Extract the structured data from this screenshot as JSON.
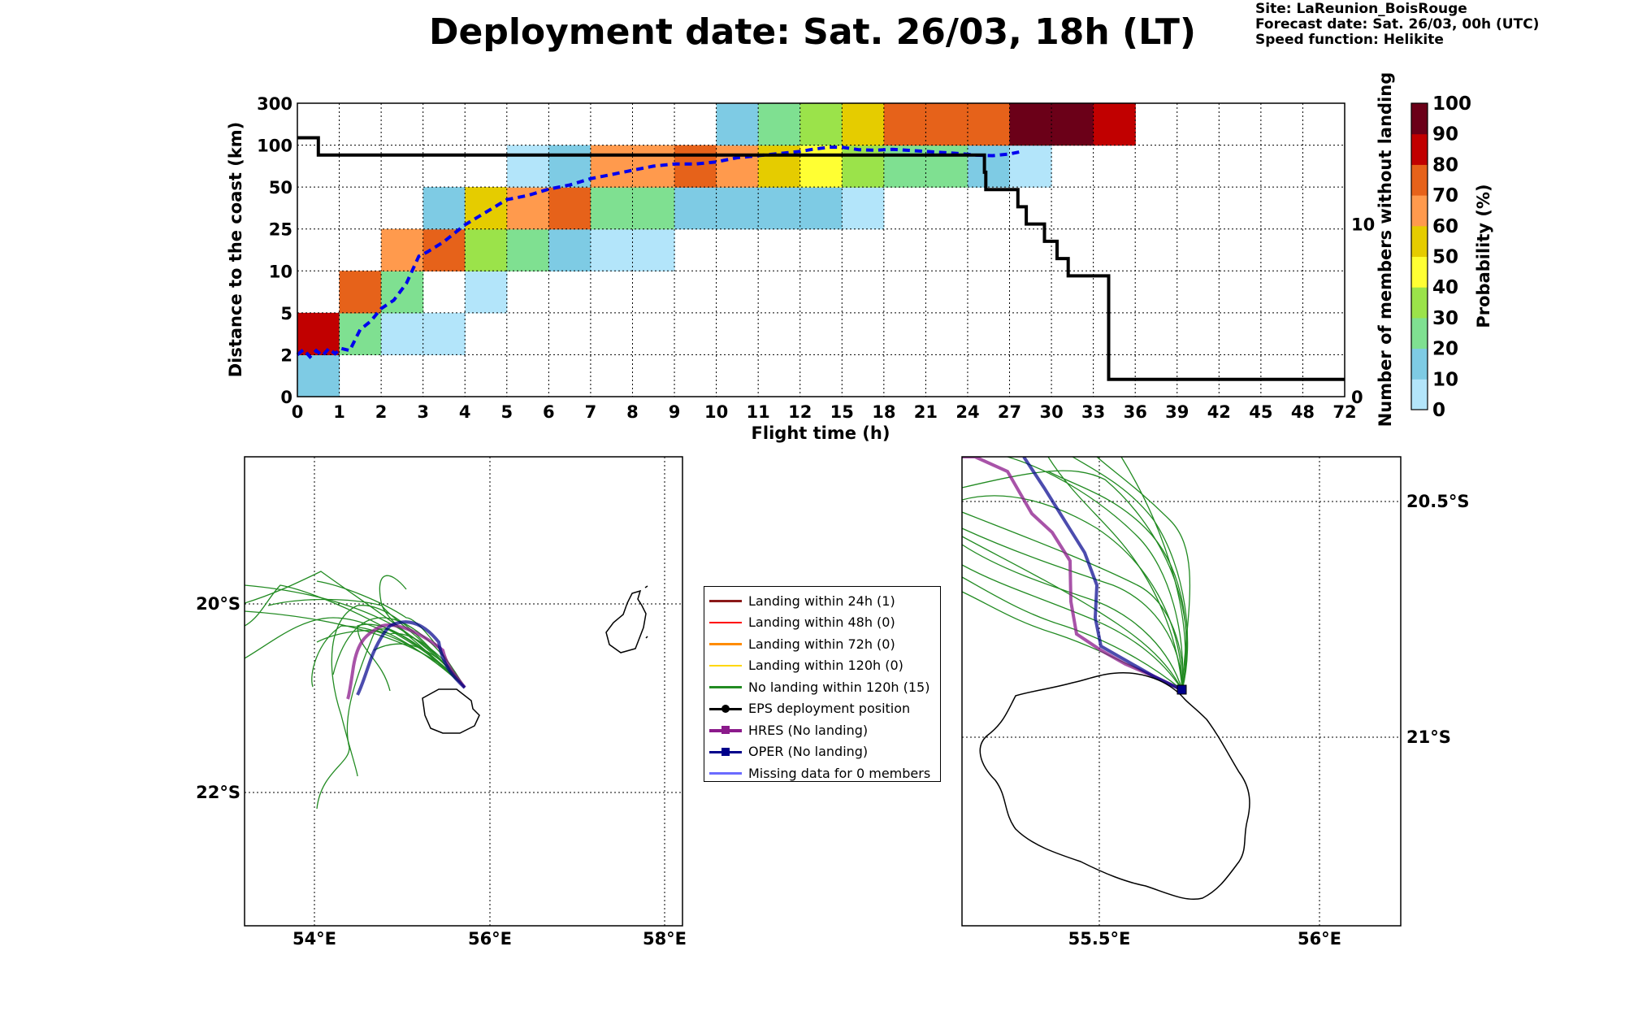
{
  "header": {
    "title": "Deployment date: Sat. 26/03, 18h (LT)",
    "site": "Site: LaReunion_BoisRouge",
    "forecast": "Forecast date: Sat. 26/03, 00h (UTC)",
    "speed": "Speed function: Helikite"
  },
  "chart_data": [
    {
      "type": "heatmap",
      "xlabel": "Flight time (h)",
      "ylabel": "Distance to the coast (km)",
      "ylabel_right": "Number of members without landing",
      "x_ticks": [
        "0",
        "1",
        "2",
        "3",
        "4",
        "5",
        "6",
        "7",
        "8",
        "9",
        "10",
        "11",
        "12",
        "15",
        "18",
        "21",
        "24",
        "27",
        "30",
        "33",
        "36",
        "39",
        "42",
        "45",
        "48",
        "72"
      ],
      "y_ticks": [
        "0",
        "2",
        "5",
        "10",
        "25",
        "50",
        "100",
        "300"
      ],
      "right_ticks": [
        {
          "label": "0",
          "value": 0
        },
        {
          "label": "10",
          "value": 10
        }
      ],
      "right_max": 17,
      "grid": true,
      "colorbar": {
        "label": "Probability (%)",
        "ticks": [
          "0",
          "10",
          "20",
          "30",
          "40",
          "50",
          "60",
          "70",
          "80",
          "90",
          "100"
        ],
        "colors": [
          "#b3e5fa",
          "#7ecbe4",
          "#7fe091",
          "#9be34a",
          "#ffff33",
          "#e5cc00",
          "#ff9a4d",
          "#e6621a",
          "#c10000",
          "#6b0018"
        ]
      },
      "cells": [
        {
          "x": 0,
          "y": 0,
          "p": 10
        },
        {
          "x": 0,
          "y": 1,
          "p": 80
        },
        {
          "x": 1,
          "y": 1,
          "p": 20
        },
        {
          "x": 1,
          "y": 2,
          "p": 70
        },
        {
          "x": 2,
          "y": 1,
          "p": 0
        },
        {
          "x": 2,
          "y": 2,
          "p": 20
        },
        {
          "x": 2,
          "y": 3,
          "p": 60
        },
        {
          "x": 3,
          "y": 1,
          "p": 0
        },
        {
          "x": 3,
          "y": 3,
          "p": 70
        },
        {
          "x": 3,
          "y": 4,
          "p": 10
        },
        {
          "x": 4,
          "y": 2,
          "p": 0
        },
        {
          "x": 4,
          "y": 3,
          "p": 30
        },
        {
          "x": 4,
          "y": 4,
          "p": 50
        },
        {
          "x": 5,
          "y": 3,
          "p": 20
        },
        {
          "x": 5,
          "y": 4,
          "p": 60
        },
        {
          "x": 5,
          "y": 5,
          "p": 0
        },
        {
          "x": 6,
          "y": 3,
          "p": 10
        },
        {
          "x": 6,
          "y": 4,
          "p": 70
        },
        {
          "x": 6,
          "y": 5,
          "p": 10
        },
        {
          "x": 7,
          "y": 3,
          "p": 0
        },
        {
          "x": 7,
          "y": 4,
          "p": 20
        },
        {
          "x": 7,
          "y": 5,
          "p": 60
        },
        {
          "x": 8,
          "y": 3,
          "p": 0
        },
        {
          "x": 8,
          "y": 4,
          "p": 20
        },
        {
          "x": 8,
          "y": 5,
          "p": 60
        },
        {
          "x": 9,
          "y": 4,
          "p": 10
        },
        {
          "x": 9,
          "y": 5,
          "p": 70
        },
        {
          "x": 10,
          "y": 4,
          "p": 10
        },
        {
          "x": 10,
          "y": 5,
          "p": 60
        },
        {
          "x": 10,
          "y": 6,
          "p": 10
        },
        {
          "x": 11,
          "y": 4,
          "p": 10
        },
        {
          "x": 11,
          "y": 5,
          "p": 50
        },
        {
          "x": 11,
          "y": 6,
          "p": 20
        },
        {
          "x": 12,
          "y": 4,
          "p": 10
        },
        {
          "x": 12,
          "y": 5,
          "p": 40
        },
        {
          "x": 12,
          "y": 6,
          "p": 30
        },
        {
          "x": 13,
          "y": 4,
          "p": 0
        },
        {
          "x": 13,
          "y": 5,
          "p": 30
        },
        {
          "x": 13,
          "y": 6,
          "p": 50
        },
        {
          "x": 14,
          "y": 5,
          "p": 20
        },
        {
          "x": 14,
          "y": 6,
          "p": 70
        },
        {
          "x": 15,
          "y": 5,
          "p": 20
        },
        {
          "x": 15,
          "y": 6,
          "p": 70
        },
        {
          "x": 16,
          "y": 5,
          "p": 10
        },
        {
          "x": 16,
          "y": 6,
          "p": 70
        },
        {
          "x": 17,
          "y": 5,
          "p": 0
        },
        {
          "x": 17,
          "y": 6,
          "p": 90
        },
        {
          "x": 18,
          "y": 6,
          "p": 90
        },
        {
          "x": 19,
          "y": 6,
          "p": 80
        }
      ],
      "median_distance": {
        "x": [
          0,
          0.15,
          0.3,
          0.45,
          0.6,
          0.75,
          0.9,
          1.05,
          1.25,
          1.5,
          1.75,
          2.0,
          2.3,
          2.6,
          2.9,
          3.1,
          3.5,
          4.0,
          4.5,
          5.0,
          5.5,
          6.0,
          6.5,
          7.0,
          7.5,
          8.0,
          8.5,
          9.0,
          9.5,
          10.0,
          10.5,
          11.0,
          11.5,
          12.0,
          12.3,
          12.7,
          13.0,
          13.4,
          13.8,
          14.2,
          14.6,
          15.0,
          15.4,
          15.8,
          16.2,
          16.6,
          17.0,
          17.3
        ],
        "y": [
          2,
          2.25,
          1.9,
          2.2,
          1.95,
          2.3,
          2.05,
          2.3,
          2.2,
          3.2,
          3.6,
          4.2,
          4.6,
          5.4,
          6.7,
          6.9,
          7.4,
          8.2,
          8.8,
          9.4,
          9.6,
          9.9,
          10.1,
          10.4,
          10.6,
          10.8,
          11.0,
          11.1,
          11.1,
          11.2,
          11.4,
          11.5,
          11.6,
          11.7,
          11.8,
          11.9,
          11.9,
          11.78,
          11.76,
          11.8,
          11.75,
          11.7,
          11.65,
          11.6,
          11.52,
          11.5,
          11.58,
          11.7
        ]
      },
      "members_without_landing": {
        "x": [
          0,
          0.4,
          0.5,
          1,
          2,
          5,
          10,
          15,
          20,
          24.8,
          25.2,
          25.3,
          27.4,
          27.6,
          28.2,
          29.5,
          30.4,
          31.2,
          33.2,
          34.1,
          35,
          72
        ],
        "y": [
          15,
          15,
          14,
          14,
          14,
          14,
          14,
          14,
          14,
          14,
          13,
          12,
          12,
          11,
          10,
          9,
          8,
          7,
          7,
          1,
          1,
          1
        ]
      }
    },
    {
      "type": "map",
      "x_ticks": [
        "54°E",
        "56°E",
        "58°E"
      ],
      "y_ticks": [
        "20°S",
        "22°S"
      ]
    },
    {
      "type": "map",
      "x_ticks": [
        "55.5°E",
        "56°E"
      ],
      "y_ticks": [
        "20.5°S",
        "21°S"
      ]
    }
  ],
  "legend": {
    "items": [
      {
        "label": "Landing within 24h (1)",
        "color": "#8b1a1a",
        "marker": "none"
      },
      {
        "label": "Landing within 48h (0)",
        "color": "#ff0000",
        "marker": "none"
      },
      {
        "label": "Landing within 72h (0)",
        "color": "#ff8c00",
        "marker": "none"
      },
      {
        "label": "Landing within 120h (0)",
        "color": "#ffd700",
        "marker": "none"
      },
      {
        "label": "No landing within 120h (15)",
        "color": "#228b22",
        "marker": "none"
      },
      {
        "label": "EPS deployment position",
        "color": "#000000",
        "marker": "circle"
      },
      {
        "label": "HRES (No landing)",
        "color": "#8b1a8b",
        "marker": "square"
      },
      {
        "label": "OPER (No landing)",
        "color": "#00008b",
        "marker": "square"
      },
      {
        "label": "Missing data for 0 members",
        "color": "#6a6aff",
        "marker": "none"
      }
    ]
  }
}
